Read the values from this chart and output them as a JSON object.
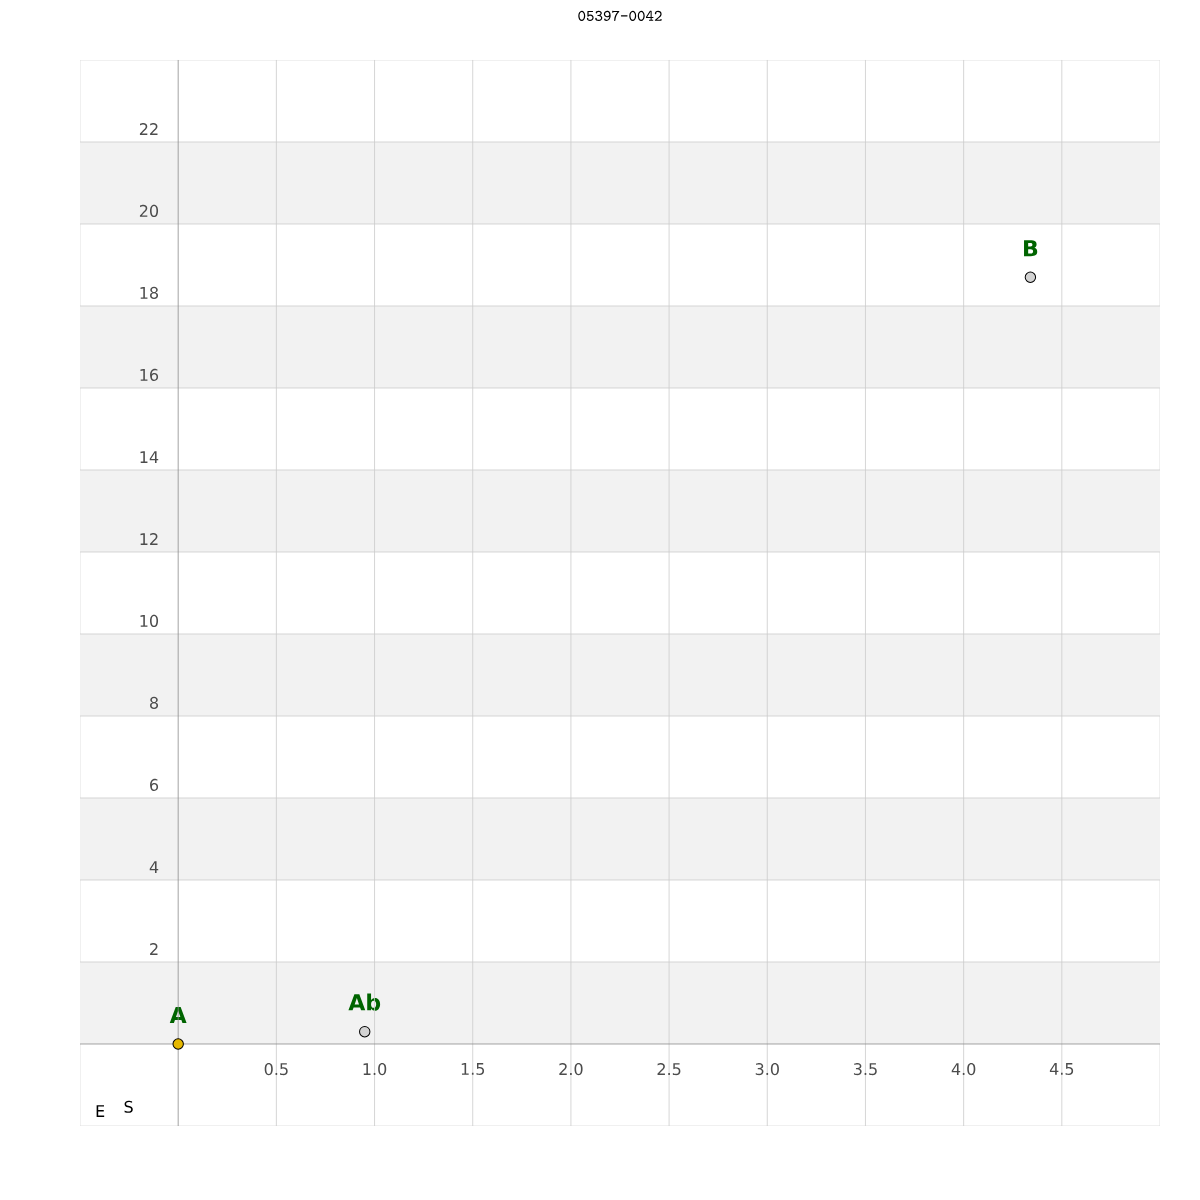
{
  "chart_data": {
    "type": "scatter",
    "title": "05397-0042",
    "xlabel": "E",
    "ylabel": "S",
    "x": [
      0,
      0.95,
      4.34
    ],
    "series": [
      {
        "values": [
          0,
          0.3,
          18.7
        ],
        "colors": [
          "#e6b800",
          "#d3d3d3",
          "#d3d3d3"
        ]
      }
    ],
    "marker": "circle",
    "xlim": [
      -0.5,
      5.0
    ],
    "ylim": [
      -2,
      24
    ],
    "xticks": [
      0.5,
      {
        "value": 1,
        "label": "1.0"
      },
      1.5,
      {
        "value": 2,
        "label": "2.0"
      },
      2.5,
      {
        "value": 3,
        "label": "3.0"
      },
      3.5,
      {
        "value": 4,
        "label": "4.0"
      },
      4.5
    ],
    "yticks": [
      2,
      4,
      6,
      8,
      10,
      12,
      14,
      16,
      18,
      20,
      22
    ],
    "grid": true,
    "bands": [
      {
        "axis": "y",
        "from": 0,
        "to": 2,
        "color": "#f2f2f2"
      },
      {
        "axis": "y",
        "from": 4,
        "to": 6,
        "color": "#f2f2f2"
      },
      {
        "axis": "y",
        "from": 8,
        "to": 10,
        "color": "#f2f2f2"
      },
      {
        "axis": "y",
        "from": 12,
        "to": 14,
        "color": "#f2f2f2"
      },
      {
        "axis": "y",
        "from": 16,
        "to": 18,
        "color": "#f2f2f2"
      },
      {
        "axis": "y",
        "from": 20,
        "to": 22,
        "color": "#f2f2f2"
      }
    ],
    "annotations": [
      {
        "text": "A",
        "x": 0,
        "y": 0
      },
      {
        "text": "Ab",
        "x": 0.95,
        "y": 0.3
      },
      {
        "text": "B",
        "x": 4.34,
        "y": 18.7
      }
    ]
  }
}
